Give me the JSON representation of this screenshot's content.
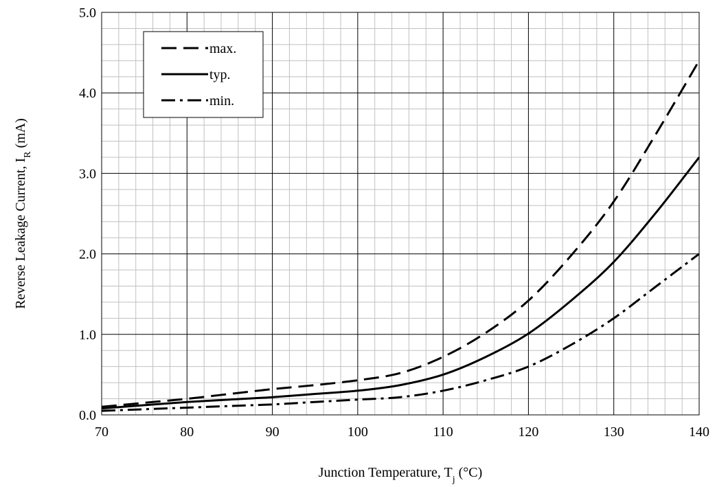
{
  "chart_data": {
    "type": "line",
    "title": "",
    "xlabel": "Junction Temperature, T",
    "xlabel_sub": "j",
    "xlabel_unit": " (°C)",
    "ylabel": "Reverse Leakage Current, I",
    "ylabel_sub": "R",
    "ylabel_unit": " (mA)",
    "xlim": [
      70,
      140
    ],
    "ylim": [
      0,
      5
    ],
    "x_ticks": [
      "70",
      "80",
      "90",
      "100",
      "110",
      "120",
      "130",
      "140"
    ],
    "y_ticks": [
      "0.0",
      "1.0",
      "2.0",
      "3.0",
      "4.0",
      "5.0"
    ],
    "grid": true,
    "legend_position": "top-left",
    "series": [
      {
        "name": "max.",
        "style": "dashed",
        "x": [
          70,
          75,
          80,
          85,
          90,
          95,
          100,
          105,
          110,
          115,
          120,
          125,
          130,
          135,
          140
        ],
        "y": [
          0.1,
          0.15,
          0.2,
          0.26,
          0.32,
          0.37,
          0.43,
          0.52,
          0.72,
          1.02,
          1.42,
          1.98,
          2.65,
          3.5,
          4.4
        ]
      },
      {
        "name": "typ.",
        "style": "solid",
        "x": [
          70,
          75,
          80,
          85,
          90,
          95,
          100,
          105,
          110,
          115,
          120,
          125,
          130,
          135,
          140
        ],
        "y": [
          0.08,
          0.12,
          0.16,
          0.19,
          0.22,
          0.26,
          0.3,
          0.37,
          0.5,
          0.72,
          1.01,
          1.42,
          1.9,
          2.52,
          3.2
        ]
      },
      {
        "name": "min.",
        "style": "dash-dot",
        "x": [
          70,
          75,
          80,
          85,
          90,
          95,
          100,
          105,
          110,
          115,
          120,
          125,
          130,
          135,
          140
        ],
        "y": [
          0.05,
          0.07,
          0.09,
          0.11,
          0.13,
          0.16,
          0.19,
          0.22,
          0.3,
          0.43,
          0.6,
          0.87,
          1.2,
          1.6,
          2.0
        ]
      }
    ]
  }
}
